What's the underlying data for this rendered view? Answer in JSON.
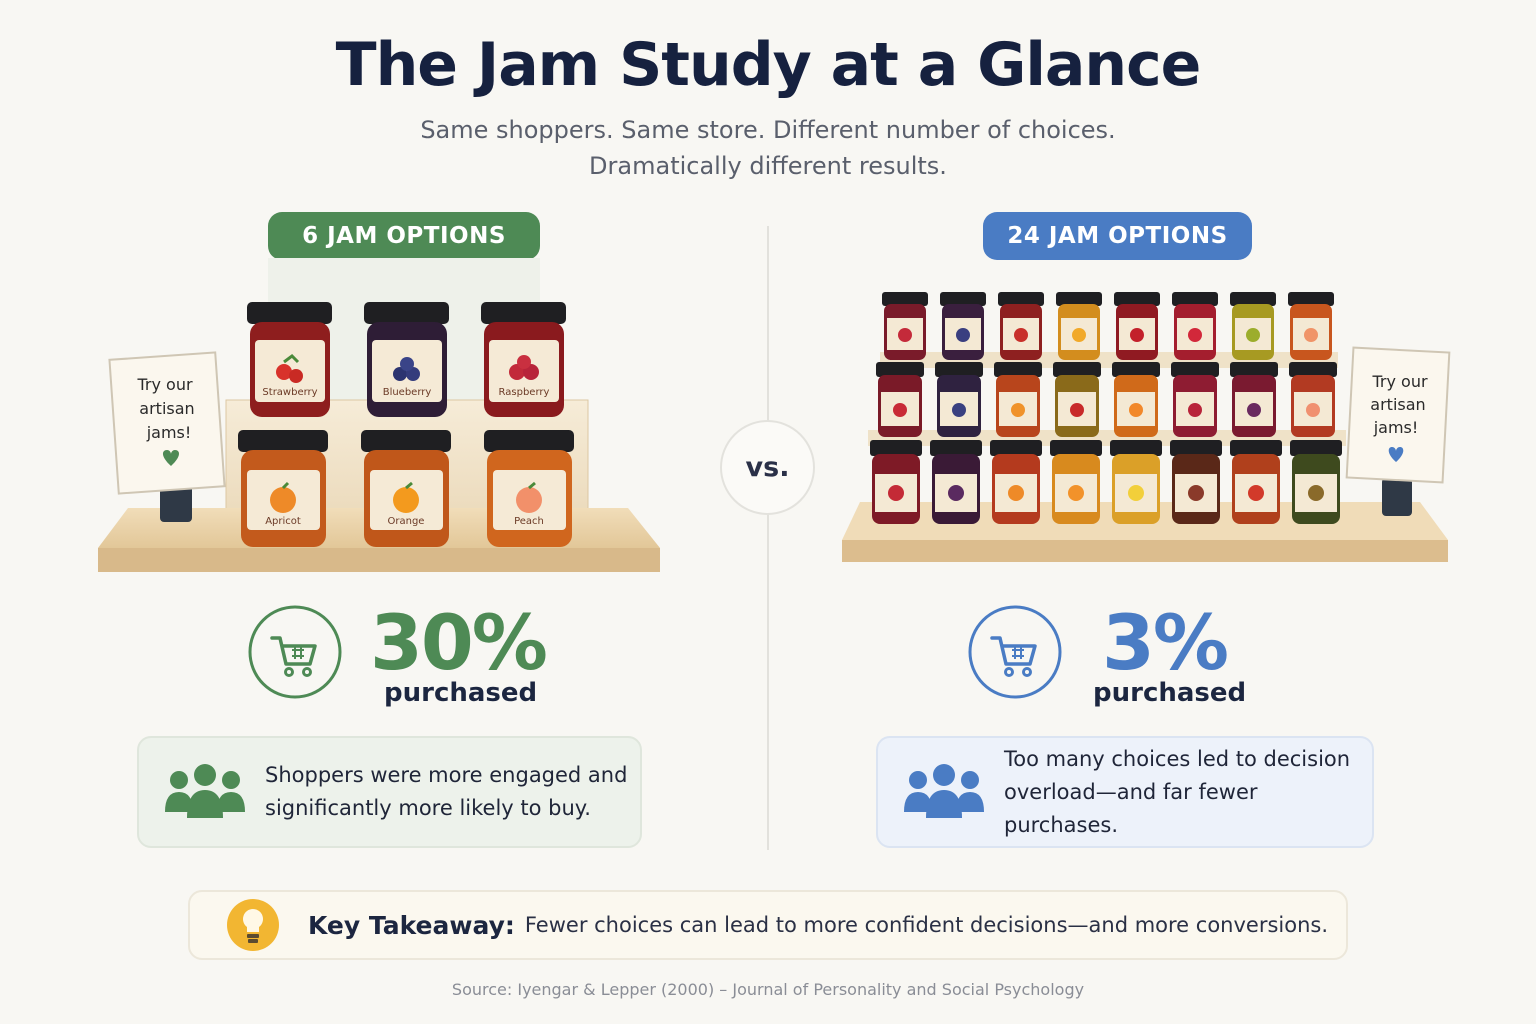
{
  "header": {
    "title": "The Jam Study at a Glance",
    "subtitle_line1": "Same shoppers. Same store. Different number of choices.",
    "subtitle_line2": "Dramatically different results."
  },
  "left": {
    "badge": "6 JAM OPTIONS",
    "sign": [
      "Try our",
      "artisan",
      "jams!"
    ],
    "jars_top": [
      "Strawberry",
      "Blueberry",
      "Raspberry"
    ],
    "jars_bottom": [
      "Apricot",
      "Orange",
      "Peach"
    ],
    "stat_value": "30%",
    "stat_label": "purchased",
    "card_line1": "Shoppers were more engaged and",
    "card_line2": "significantly more likely to buy.",
    "accent": "#4e8a55"
  },
  "vs_label": "vs.",
  "right": {
    "badge": "24 JAM OPTIONS",
    "sign": [
      "Try our",
      "artisan",
      "jams!"
    ],
    "stat_value": "3%",
    "stat_label": "purchased",
    "card_line1": "Too many choices led to decision",
    "card_line2": "overload—and far fewer purchases.",
    "accent": "#4a7cc4"
  },
  "takeaway": {
    "label": "Key Takeaway:",
    "text": "Fewer choices can lead to more confident decisions—and more conversions."
  },
  "source": "Source: Iyengar & Lepper (2000) – Journal of Personality and Social Psychology"
}
